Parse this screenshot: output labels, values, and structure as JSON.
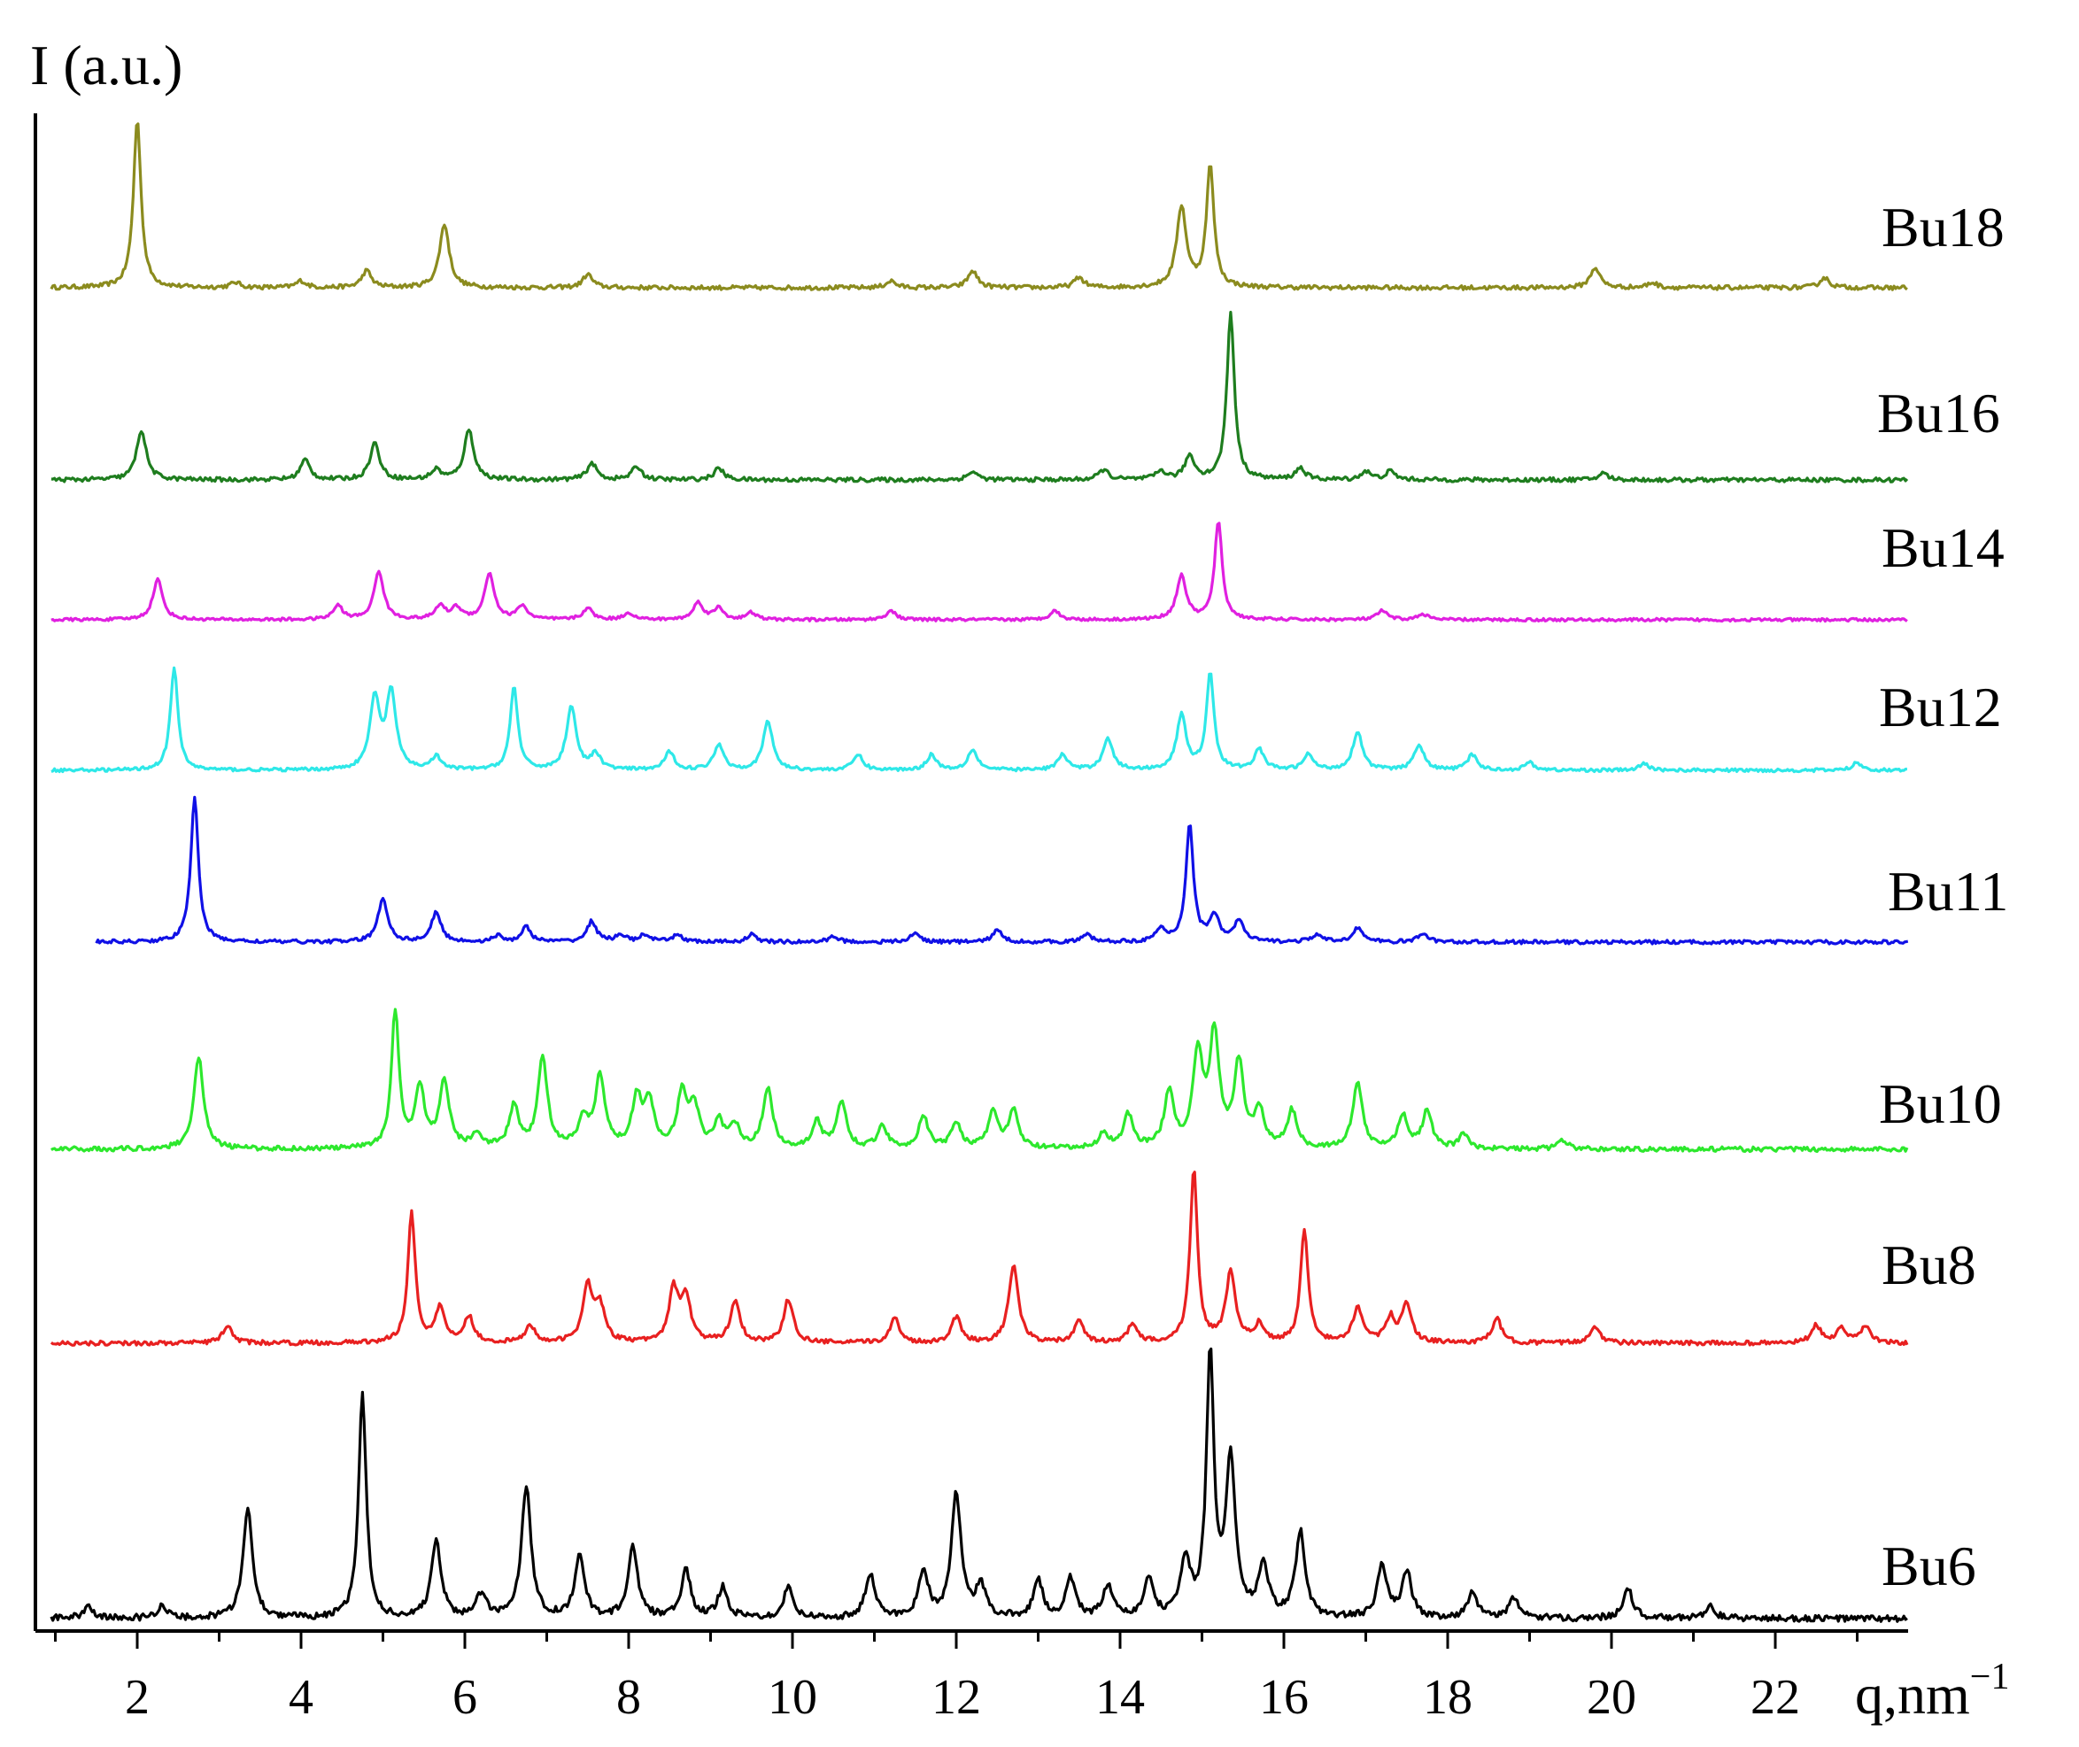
{
  "chart_data": {
    "type": "line",
    "ylabel": "I (a.u.)",
    "xlabel": "q,nm",
    "xlabel_superscript": "−1",
    "xlim": [
      0.9,
      23.5
    ],
    "x_ticks": [
      "2",
      "4",
      "6",
      "8",
      "10",
      "12",
      "14",
      "16",
      "18",
      "20",
      "22"
    ],
    "y_ticks": [],
    "grid": false,
    "legend": "labels at right end of each trace",
    "series": [
      {
        "name": "Bu18",
        "color": "#8b8b1e",
        "x_start": 0.95,
        "peaks": [
          [
            2.0,
            1.0
          ],
          [
            3.2,
            0.03
          ],
          [
            4.0,
            0.04
          ],
          [
            4.8,
            0.1
          ],
          [
            5.75,
            0.38
          ],
          [
            7.5,
            0.08
          ],
          [
            11.2,
            0.04
          ],
          [
            12.2,
            0.1
          ],
          [
            13.5,
            0.06
          ],
          [
            14.75,
            0.48
          ],
          [
            15.1,
            0.72
          ],
          [
            19.8,
            0.12
          ],
          [
            20.5,
            0.03
          ],
          [
            22.6,
            0.06
          ]
        ]
      },
      {
        "name": "Bu16",
        "color": "#1e7d1e",
        "x_start": 0.95,
        "peaks": [
          [
            2.05,
            0.3
          ],
          [
            4.05,
            0.12
          ],
          [
            4.9,
            0.22
          ],
          [
            5.65,
            0.06
          ],
          [
            6.05,
            0.3
          ],
          [
            7.55,
            0.1
          ],
          [
            8.1,
            0.08
          ],
          [
            9.1,
            0.07
          ],
          [
            12.2,
            0.05
          ],
          [
            13.8,
            0.06
          ],
          [
            14.5,
            0.05
          ],
          [
            14.85,
            0.14
          ],
          [
            15.35,
            1.0
          ],
          [
            16.2,
            0.07
          ],
          [
            17.0,
            0.05
          ],
          [
            17.3,
            0.05
          ],
          [
            19.9,
            0.04
          ]
        ]
      },
      {
        "name": "Bu14",
        "color": "#e020e0",
        "x_start": 0.95,
        "peaks": [
          [
            2.25,
            0.35
          ],
          [
            4.45,
            0.12
          ],
          [
            4.95,
            0.42
          ],
          [
            5.7,
            0.12
          ],
          [
            5.9,
            0.1
          ],
          [
            6.3,
            0.4
          ],
          [
            6.7,
            0.12
          ],
          [
            7.5,
            0.1
          ],
          [
            8.0,
            0.06
          ],
          [
            8.85,
            0.15
          ],
          [
            9.1,
            0.1
          ],
          [
            9.5,
            0.06
          ],
          [
            11.2,
            0.08
          ],
          [
            13.2,
            0.08
          ],
          [
            14.75,
            0.38
          ],
          [
            15.2,
            0.85
          ],
          [
            17.2,
            0.08
          ],
          [
            17.7,
            0.05
          ]
        ]
      },
      {
        "name": "Bu12",
        "color": "#2ee8e8",
        "x_start": 0.95,
        "peaks": [
          [
            2.45,
            0.8
          ],
          [
            4.9,
            0.55
          ],
          [
            5.1,
            0.6
          ],
          [
            5.65,
            0.1
          ],
          [
            6.6,
            0.65
          ],
          [
            7.3,
            0.5
          ],
          [
            7.6,
            0.12
          ],
          [
            8.5,
            0.14
          ],
          [
            9.1,
            0.2
          ],
          [
            9.7,
            0.38
          ],
          [
            10.8,
            0.12
          ],
          [
            11.7,
            0.12
          ],
          [
            12.2,
            0.16
          ],
          [
            13.3,
            0.12
          ],
          [
            13.85,
            0.25
          ],
          [
            14.75,
            0.42
          ],
          [
            15.1,
            0.76
          ],
          [
            15.7,
            0.16
          ],
          [
            16.3,
            0.12
          ],
          [
            16.9,
            0.3
          ],
          [
            17.65,
            0.2
          ],
          [
            18.3,
            0.12
          ],
          [
            19.0,
            0.06
          ],
          [
            20.4,
            0.05
          ],
          [
            23.0,
            0.06
          ]
        ]
      },
      {
        "name": "Bu11",
        "color": "#1010e6",
        "x_start": 1.5,
        "peaks": [
          [
            2.7,
            1.0
          ],
          [
            5.0,
            0.3
          ],
          [
            5.65,
            0.2
          ],
          [
            6.4,
            0.04
          ],
          [
            6.75,
            0.1
          ],
          [
            7.55,
            0.14
          ],
          [
            7.9,
            0.05
          ],
          [
            8.2,
            0.05
          ],
          [
            8.6,
            0.05
          ],
          [
            9.5,
            0.05
          ],
          [
            10.5,
            0.04
          ],
          [
            11.5,
            0.06
          ],
          [
            12.5,
            0.08
          ],
          [
            13.6,
            0.05
          ],
          [
            14.5,
            0.08
          ],
          [
            14.85,
            0.8
          ],
          [
            15.15,
            0.18
          ],
          [
            15.45,
            0.14
          ],
          [
            16.4,
            0.05
          ],
          [
            16.9,
            0.1
          ],
          [
            17.7,
            0.06
          ]
        ]
      },
      {
        "name": "Bu10",
        "color": "#2de82d",
        "x_start": 0.95,
        "peaks": [
          [
            2.75,
            0.5
          ],
          [
            5.15,
            0.74
          ],
          [
            5.45,
            0.32
          ],
          [
            5.75,
            0.36
          ],
          [
            6.15,
            0.08
          ],
          [
            6.6,
            0.22
          ],
          [
            6.95,
            0.48
          ],
          [
            7.45,
            0.15
          ],
          [
            7.65,
            0.38
          ],
          [
            8.1,
            0.26
          ],
          [
            8.25,
            0.24
          ],
          [
            8.65,
            0.28
          ],
          [
            8.8,
            0.22
          ],
          [
            9.1,
            0.14
          ],
          [
            9.3,
            0.12
          ],
          [
            9.7,
            0.32
          ],
          [
            10.3,
            0.14
          ],
          [
            10.6,
            0.25
          ],
          [
            11.1,
            0.12
          ],
          [
            11.6,
            0.17
          ],
          [
            12.0,
            0.14
          ],
          [
            12.45,
            0.2
          ],
          [
            12.7,
            0.2
          ],
          [
            13.8,
            0.08
          ],
          [
            14.1,
            0.18
          ],
          [
            14.6,
            0.3
          ],
          [
            14.95,
            0.5
          ],
          [
            15.15,
            0.6
          ],
          [
            15.45,
            0.45
          ],
          [
            15.7,
            0.2
          ],
          [
            16.1,
            0.2
          ],
          [
            16.9,
            0.35
          ],
          [
            17.45,
            0.18
          ],
          [
            17.75,
            0.2
          ],
          [
            18.2,
            0.08
          ],
          [
            19.4,
            0.05
          ]
        ]
      },
      {
        "name": "Bu8",
        "color": "#e82020",
        "x_start": 0.95,
        "peaks": [
          [
            3.1,
            0.1
          ],
          [
            5.35,
            0.75
          ],
          [
            5.7,
            0.2
          ],
          [
            6.05,
            0.15
          ],
          [
            6.8,
            0.1
          ],
          [
            7.5,
            0.33
          ],
          [
            7.65,
            0.2
          ],
          [
            8.55,
            0.3
          ],
          [
            8.7,
            0.25
          ],
          [
            9.3,
            0.24
          ],
          [
            9.95,
            0.25
          ],
          [
            11.25,
            0.14
          ],
          [
            12.0,
            0.15
          ],
          [
            12.7,
            0.45
          ],
          [
            13.5,
            0.12
          ],
          [
            14.15,
            0.1
          ],
          [
            14.9,
            1.0
          ],
          [
            15.35,
            0.4
          ],
          [
            15.7,
            0.1
          ],
          [
            16.25,
            0.66
          ],
          [
            16.9,
            0.2
          ],
          [
            17.3,
            0.14
          ],
          [
            17.5,
            0.22
          ],
          [
            18.6,
            0.14
          ],
          [
            19.8,
            0.1
          ],
          [
            22.5,
            0.1
          ],
          [
            22.8,
            0.08
          ],
          [
            23.1,
            0.1
          ]
        ]
      },
      {
        "name": "Bu6",
        "color": "#000000",
        "x_start": 0.95,
        "peaks": [
          [
            1.4,
            0.05
          ],
          [
            2.3,
            0.05
          ],
          [
            3.35,
            0.42
          ],
          [
            4.75,
            0.87
          ],
          [
            5.65,
            0.3
          ],
          [
            6.2,
            0.09
          ],
          [
            6.75,
            0.51
          ],
          [
            7.4,
            0.24
          ],
          [
            8.05,
            0.27
          ],
          [
            8.7,
            0.18
          ],
          [
            9.15,
            0.12
          ],
          [
            9.95,
            0.12
          ],
          [
            10.95,
            0.17
          ],
          [
            11.6,
            0.18
          ],
          [
            12.0,
            0.48
          ],
          [
            12.3,
            0.12
          ],
          [
            13.0,
            0.14
          ],
          [
            13.4,
            0.15
          ],
          [
            13.85,
            0.12
          ],
          [
            14.35,
            0.14
          ],
          [
            14.8,
            0.22
          ],
          [
            15.1,
            1.0
          ],
          [
            15.35,
            0.6
          ],
          [
            15.75,
            0.2
          ],
          [
            16.2,
            0.33
          ],
          [
            17.2,
            0.2
          ],
          [
            17.5,
            0.18
          ],
          [
            18.3,
            0.1
          ],
          [
            18.8,
            0.08
          ],
          [
            20.2,
            0.12
          ],
          [
            21.2,
            0.05
          ]
        ]
      }
    ]
  }
}
